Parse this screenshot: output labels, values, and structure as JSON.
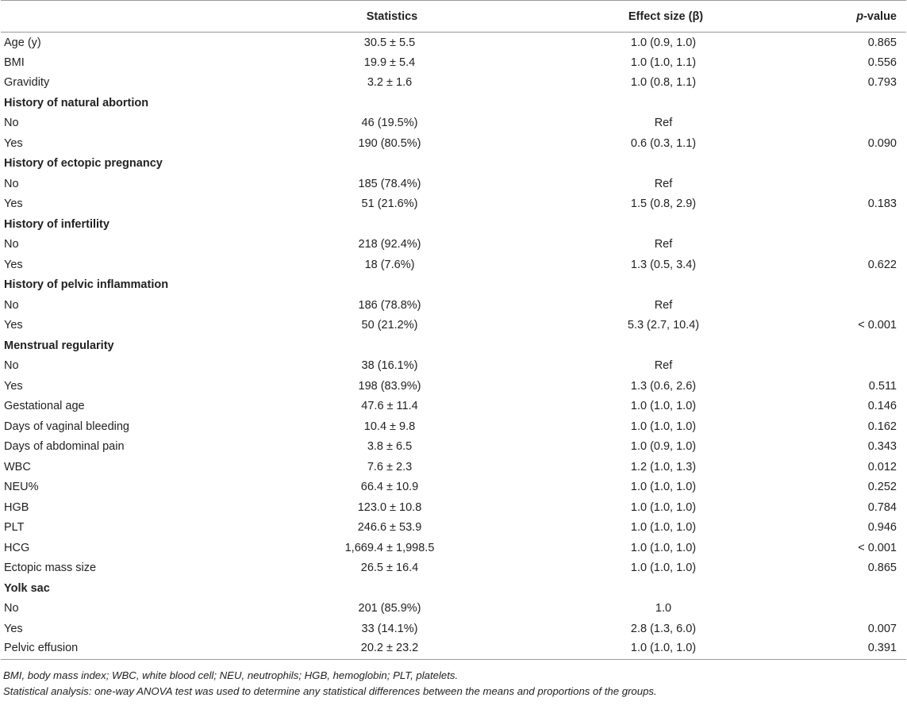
{
  "table": {
    "headers": [
      "",
      "Statistics",
      "Effect size (β)",
      "-value"
    ],
    "p_prefix": "p",
    "rows": [
      {
        "label": "Age (y)",
        "stat": "30.5 ± 5.5",
        "effect": "1.0 (0.9, 1.0)",
        "p": "0.865",
        "section": false
      },
      {
        "label": "BMI",
        "stat": "19.9 ± 5.4",
        "effect": "1.0 (1.0, 1.1)",
        "p": "0.556",
        "section": false
      },
      {
        "label": "Gravidity",
        "stat": "3.2 ± 1.6",
        "effect": "1.0 (0.8, 1.1)",
        "p": "0.793",
        "section": false
      },
      {
        "label": "History of natural abortion",
        "stat": "",
        "effect": "",
        "p": "",
        "section": true
      },
      {
        "label": "No",
        "stat": "46 (19.5%)",
        "effect": "Ref",
        "p": "",
        "section": false
      },
      {
        "label": "Yes",
        "stat": "190 (80.5%)",
        "effect": "0.6 (0.3, 1.1)",
        "p": "0.090",
        "section": false
      },
      {
        "label": "History of ectopic pregnancy",
        "stat": "",
        "effect": "",
        "p": "",
        "section": true
      },
      {
        "label": "No",
        "stat": "185 (78.4%)",
        "effect": "Ref",
        "p": "",
        "section": false
      },
      {
        "label": "Yes",
        "stat": "51 (21.6%)",
        "effect": "1.5 (0.8, 2.9)",
        "p": "0.183",
        "section": false
      },
      {
        "label": "History of infertility",
        "stat": "",
        "effect": "",
        "p": "",
        "section": true
      },
      {
        "label": "No",
        "stat": "218 (92.4%)",
        "effect": "Ref",
        "p": "",
        "section": false
      },
      {
        "label": "Yes",
        "stat": "18 (7.6%)",
        "effect": "1.3 (0.5, 3.4)",
        "p": "0.622",
        "section": false
      },
      {
        "label": "History of pelvic inflammation",
        "stat": "",
        "effect": "",
        "p": "",
        "section": true
      },
      {
        "label": "No",
        "stat": "186 (78.8%)",
        "effect": "Ref",
        "p": "",
        "section": false
      },
      {
        "label": "Yes",
        "stat": "50 (21.2%)",
        "effect": "5.3 (2.7, 10.4)",
        "p": "< 0.001",
        "section": false
      },
      {
        "label": "Menstrual regularity",
        "stat": "",
        "effect": "",
        "p": "",
        "section": true
      },
      {
        "label": "No",
        "stat": "38 (16.1%)",
        "effect": "Ref",
        "p": "",
        "section": false
      },
      {
        "label": "Yes",
        "stat": "198 (83.9%)",
        "effect": "1.3 (0.6, 2.6)",
        "p": "0.511",
        "section": false
      },
      {
        "label": "Gestational age",
        "stat": "47.6 ± 11.4",
        "effect": "1.0 (1.0, 1.0)",
        "p": "0.146",
        "section": false
      },
      {
        "label": "Days of vaginal bleeding",
        "stat": "10.4 ± 9.8",
        "effect": "1.0 (1.0, 1.0)",
        "p": "0.162",
        "section": false
      },
      {
        "label": "Days of abdominal pain",
        "stat": "3.8 ± 6.5",
        "effect": "1.0 (0.9, 1.0)",
        "p": "0.343",
        "section": false
      },
      {
        "label": "WBC",
        "stat": "7.6 ± 2.3",
        "effect": "1.2 (1.0, 1.3)",
        "p": "0.012",
        "section": false
      },
      {
        "label": "NEU%",
        "stat": "66.4 ± 10.9",
        "effect": "1.0 (1.0, 1.0)",
        "p": "0.252",
        "section": false
      },
      {
        "label": "HGB",
        "stat": "123.0 ± 10.8",
        "effect": "1.0 (1.0, 1.0)",
        "p": "0.784",
        "section": false
      },
      {
        "label": "PLT",
        "stat": "246.6 ± 53.9",
        "effect": "1.0 (1.0, 1.0)",
        "p": "0.946",
        "section": false
      },
      {
        "label": "HCG",
        "stat": "1,669.4 ± 1,998.5",
        "effect": "1.0 (1.0, 1.0)",
        "p": "< 0.001",
        "section": false
      },
      {
        "label": "Ectopic mass size",
        "stat": "26.5 ± 16.4",
        "effect": "1.0 (1.0, 1.0)",
        "p": "0.865",
        "section": false
      },
      {
        "label": "Yolk sac",
        "stat": "",
        "effect": "",
        "p": "",
        "section": true
      },
      {
        "label": "No",
        "stat": "201 (85.9%)",
        "effect": "1.0",
        "p": "",
        "section": false
      },
      {
        "label": "Yes",
        "stat": "33 (14.1%)",
        "effect": "2.8 (1.3, 6.0)",
        "p": "0.007",
        "section": false
      },
      {
        "label": "Pelvic effusion",
        "stat": "20.2 ± 23.2",
        "effect": "1.0 (1.0, 1.0)",
        "p": "0.391",
        "section": false
      }
    ]
  },
  "footnotes": {
    "abbreviations": "BMI, body mass index; WBC, white blood cell; NEU, neutrophils; HGB, hemoglobin; PLT, platelets.",
    "analysis": "Statistical analysis: one-way ANOVA test was used to determine any statistical differences between the means and proportions of the groups."
  }
}
